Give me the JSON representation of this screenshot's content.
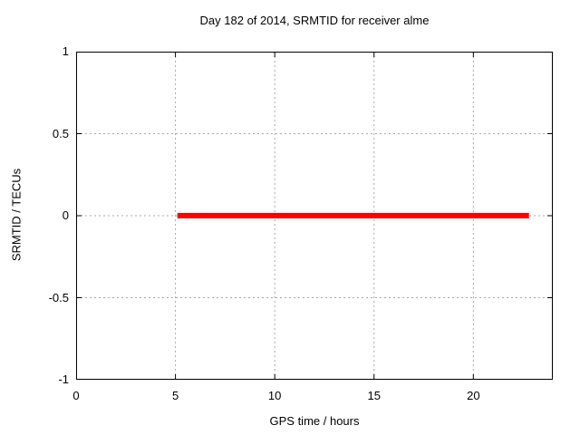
{
  "chart_data": {
    "type": "line",
    "title": "Day 182 of 2014, SRMTID for receiver alme",
    "xlabel": "GPS time / hours",
    "ylabel": "SRMTID / TECUs",
    "xlim": [
      0,
      24
    ],
    "ylim": [
      -1,
      1
    ],
    "xticks": [
      0,
      5,
      10,
      15,
      20
    ],
    "yticks": [
      1,
      0.5,
      0,
      -0.5,
      -1
    ],
    "grid": true,
    "legend": "none",
    "series": [
      {
        "name": "SRMTID",
        "x": [
          5.1,
          22.8
        ],
        "y": [
          0,
          0
        ],
        "color": "#ff0000",
        "linewidth": 6
      }
    ]
  },
  "colors": {
    "background": "#ffffff",
    "border": "#000000",
    "grid": "#aaaaaa",
    "text": "#000000",
    "line": "#ff0000"
  }
}
